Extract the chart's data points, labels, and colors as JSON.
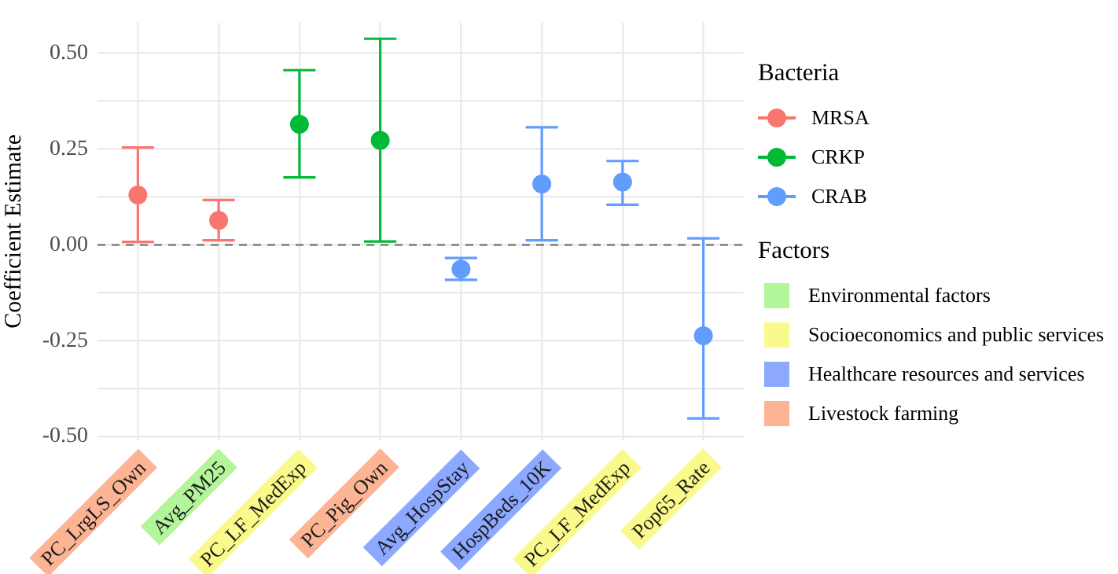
{
  "chart_data": {
    "type": "scatter",
    "ylabel": "Coefficient Estimate",
    "categories": [
      "PC_LrgLS_Own",
      "Avg_PM25",
      "PC_LF_MedExp",
      "PC_Pig_Own",
      "Avg_HospStay",
      "HospBeds_10K",
      "PC_LF_MedExp",
      "Pop65_Rate"
    ],
    "ylim": [
      -0.51,
      0.58
    ],
    "yticks": [
      {
        "value": -0.5,
        "label": "-0.50"
      },
      {
        "value": -0.375,
        "label": null
      },
      {
        "value": -0.25,
        "label": "-0.25"
      },
      {
        "value": -0.125,
        "label": null
      },
      {
        "value": 0,
        "label": "0.00"
      },
      {
        "value": 0.125,
        "label": null
      },
      {
        "value": 0.25,
        "label": "0.25"
      },
      {
        "value": 0.375,
        "label": null
      },
      {
        "value": 0.5,
        "label": "0.50"
      }
    ],
    "grid": true,
    "marker": "circle",
    "legend": "right",
    "legend_title": "Bacteria",
    "annotations": [
      "Factors",
      "Environmental factors",
      "Socioeconomics and public services",
      "Healthcare resources and services",
      "Livestock farming"
    ],
    "ref_lines": [
      {
        "axis": "y",
        "value": 0,
        "color": "#808080",
        "line_style": "dashed"
      }
    ],
    "series": [
      {
        "name": "MRSA",
        "color": "#f8766d",
        "values": [
          0.13,
          0.064,
          null,
          null,
          null,
          null,
          null,
          null
        ],
        "errors": [
          [
            0.008,
            0.254
          ],
          [
            0.012,
            0.117
          ],
          null,
          null,
          null,
          null,
          null,
          null
        ]
      },
      {
        "name": "CRKP",
        "color": "#00ba38",
        "values": [
          null,
          null,
          0.315,
          0.273,
          null,
          null,
          null,
          null
        ],
        "errors": [
          null,
          null,
          [
            0.176,
            0.456
          ],
          [
            0.009,
            0.538
          ],
          null,
          null,
          null,
          null
        ]
      },
      {
        "name": "CRAB",
        "color": "#619cff",
        "values": [
          null,
          null,
          null,
          null,
          -0.063,
          0.159,
          0.164,
          -0.237
        ],
        "errors": [
          null,
          null,
          null,
          null,
          [
            -0.091,
            -0.034
          ],
          [
            0.012,
            0.307
          ],
          [
            0.105,
            0.219
          ],
          [
            -0.453,
            0.017
          ]
        ]
      }
    ]
  }
}
